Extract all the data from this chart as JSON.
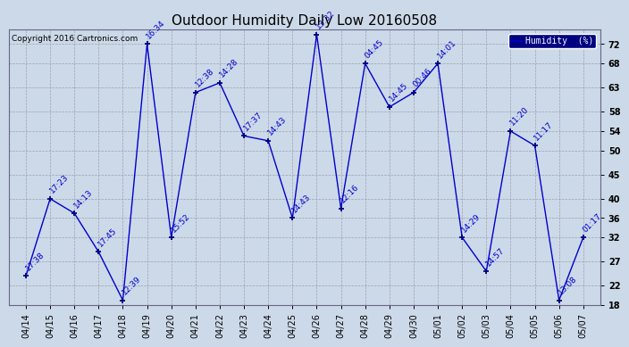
{
  "title": "Outdoor Humidity Daily Low 20160508",
  "copyright": "Copyright 2016 Cartronics.com",
  "legend_label": "Humidity  (%)",
  "bg_color": "#ccd9e8",
  "line_color": "#0000CC",
  "marker_color": "#000080",
  "grid_color": "#9999aa",
  "x_labels": [
    "04/14",
    "04/15",
    "04/16",
    "04/17",
    "04/18",
    "04/19",
    "04/20",
    "04/21",
    "04/22",
    "04/23",
    "04/24",
    "04/25",
    "04/26",
    "04/27",
    "04/28",
    "04/29",
    "04/30",
    "05/01",
    "05/02",
    "05/03",
    "05/04",
    "05/05",
    "05/06",
    "05/07"
  ],
  "y_values": [
    24,
    40,
    37,
    29,
    19,
    72,
    32,
    62,
    64,
    53,
    52,
    36,
    74,
    38,
    68,
    59,
    62,
    68,
    32,
    25,
    54,
    51,
    19,
    32
  ],
  "time_labels": [
    "17:38",
    "17:23",
    "14:13",
    "17:45",
    "12:39",
    "16:34",
    "15:52",
    "12:38",
    "14:28",
    "17:37",
    "14:43",
    "14:43",
    "13:32",
    "12:16",
    "04:45",
    "14:45",
    "00:46",
    "14:01",
    "14:29",
    "14:57",
    "11:20",
    "11:17",
    "13:08",
    "01:17"
  ],
  "ylim_min": 18,
  "ylim_max": 74,
  "yticks": [
    18,
    22,
    27,
    32,
    36,
    40,
    45,
    50,
    54,
    58,
    63,
    68,
    72
  ],
  "title_fontsize": 11,
  "annot_fontsize": 6.5,
  "tick_fontsize": 7,
  "copyright_fontsize": 6.5,
  "legend_bg": "#000080",
  "legend_fg": "#ffffff"
}
